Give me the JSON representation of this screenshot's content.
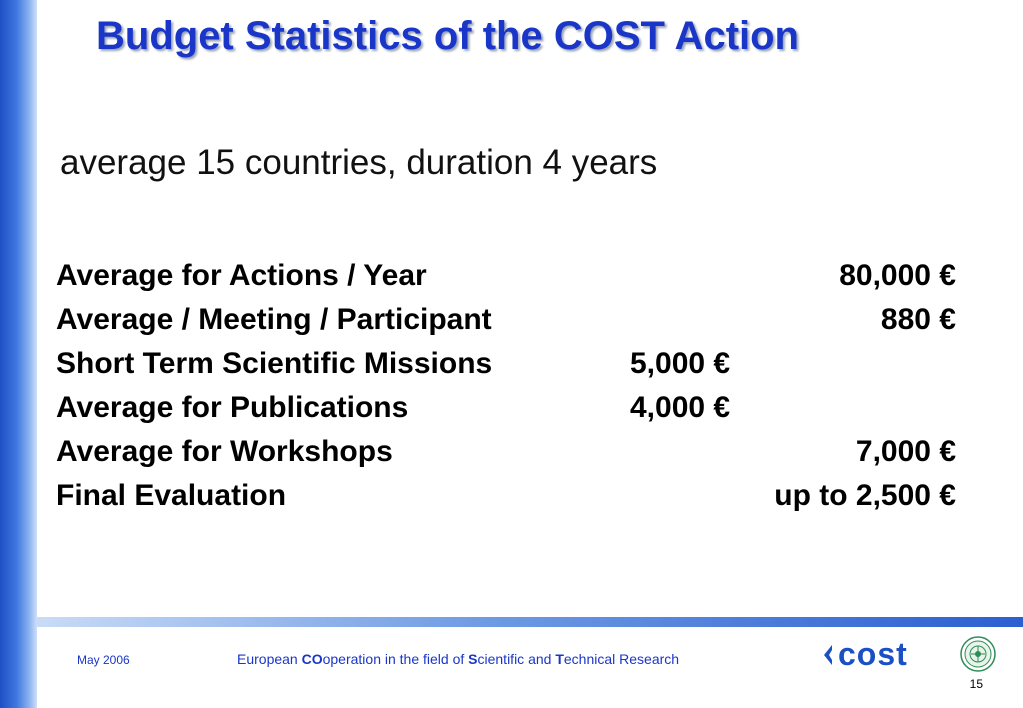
{
  "slide": {
    "title": "Budget Statistics of the COST Action",
    "subtitle": "average 15 countries, duration 4 years",
    "rows": [
      {
        "label": "Average for Actions / Year",
        "value": "80,000 €"
      },
      {
        "label": "Average / Meeting / Participant",
        "value": "880 €"
      },
      {
        "label": "Short Term Scientific Missions",
        "value": "5,000 €"
      },
      {
        "label": "Average for Publications",
        "value": "4,000 €"
      },
      {
        "label": "Average for Workshops",
        "value": "7,000 €"
      },
      {
        "label": "Final Evaluation",
        "value": "up to 2,500 €"
      }
    ]
  },
  "footer": {
    "date": "May 2006",
    "org": {
      "p1": "European ",
      "b1": "CO",
      "p2": "operation in the field of ",
      "b2": "S",
      "p3": "cientific and ",
      "b3": "T",
      "p4": "echnical Research"
    },
    "logo_text": "cost",
    "page_number": "15"
  },
  "colors": {
    "title": "#1a36c8",
    "accent_bar": "#2c5fd0",
    "footer_text": "#1a36c8",
    "logo": "#1b4fc4",
    "seal": "#2e8b57"
  },
  "icons": {
    "cost_logo": "cost-logo-icon",
    "seal": "seal-emblem-icon"
  }
}
